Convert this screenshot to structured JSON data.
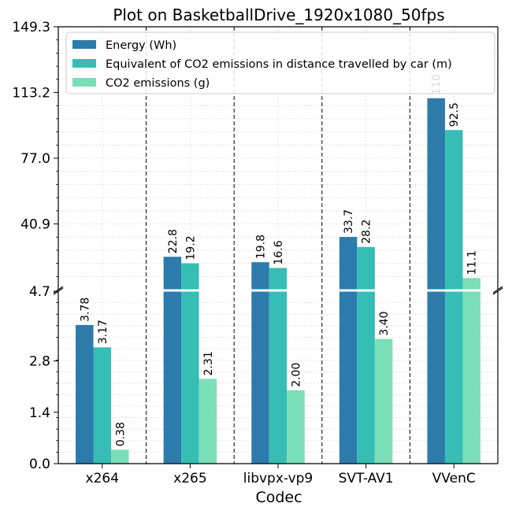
{
  "chart_data": {
    "type": "bar",
    "title": "Plot on BasketballDrive_1920x1080_50fps",
    "xlabel": "Codec",
    "ylabel": "",
    "categories": [
      "x264",
      "x265",
      "libvpx-vp9",
      "SVT-AV1",
      "VVenC"
    ],
    "series": [
      {
        "name": "Energy (Wh)",
        "color": "#2c7bab",
        "values": [
          3.78,
          22.8,
          19.8,
          33.7,
          110
        ],
        "labels": [
          "3.78",
          "22.8",
          "19.8",
          "33.7",
          "110"
        ]
      },
      {
        "name": "Equivalent of CO2 emissions in distance travelled by car (m)",
        "color": "#35bdb6",
        "values": [
          3.17,
          19.2,
          16.6,
          28.2,
          92.5
        ],
        "labels": [
          "3.17",
          "19.2",
          "16.6",
          "28.2",
          "92.5"
        ]
      },
      {
        "name": "CO2 emissions (g)",
        "color": "#7adfb6",
        "values": [
          0.38,
          2.31,
          2.0,
          3.4,
          11.1
        ],
        "labels": [
          "0.38",
          "2.31",
          "2.00",
          "3.40",
          "11.1"
        ]
      }
    ],
    "y_axis": {
      "broken": true,
      "lower_range": [
        0,
        4.7
      ],
      "upper_range": [
        4.7,
        149.3
      ],
      "lower_ticks": [
        "0.0",
        "1.4",
        "2.8",
        "4.7"
      ],
      "upper_ticks": [
        "40.9",
        "77.0",
        "113.2",
        "149.3"
      ]
    },
    "grid": true,
    "legend_position": "top"
  }
}
